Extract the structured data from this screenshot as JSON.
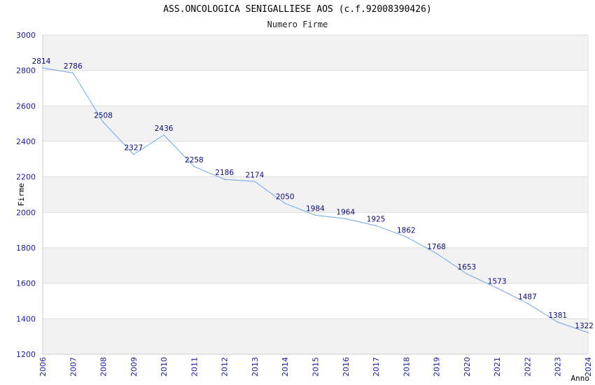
{
  "chart_data": {
    "type": "line",
    "title": "ASS.ONCOLOGICA SENIGALLIESE AOS (c.f.92008390426)",
    "subtitle": "Numero Firme",
    "xlabel": "Anno",
    "ylabel": "Firme",
    "ylim": [
      1200,
      3000
    ],
    "yticks": [
      1200,
      1400,
      1600,
      1800,
      2000,
      2200,
      2400,
      2600,
      2800,
      3000
    ],
    "grid": true,
    "series": [
      {
        "name": "Numero Firme",
        "x": [
          "2006",
          "2007",
          "2008",
          "2009",
          "2010",
          "2011",
          "2012",
          "2013",
          "2014",
          "2015",
          "2016",
          "2017",
          "2018",
          "2019",
          "2020",
          "2021",
          "2022",
          "2023",
          "2024"
        ],
        "values": [
          2814,
          2786,
          2508,
          2327,
          2436,
          2258,
          2186,
          2174,
          2050,
          1984,
          1964,
          1925,
          1862,
          1768,
          1653,
          1573,
          1487,
          1381,
          1322
        ]
      }
    ],
    "colors": {
      "line": "#6fa8e8",
      "band": "#f2f2f2",
      "tick_text": "#1a1aa6",
      "label_text": "#0a0a7a",
      "grid": "#dddddd"
    }
  }
}
